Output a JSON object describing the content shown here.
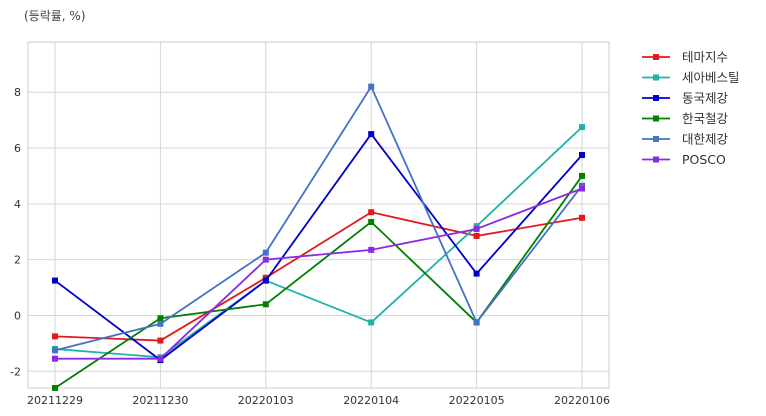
{
  "chart_data": {
    "type": "line",
    "unit_label": "(등락률, %)",
    "categories": [
      "20211229",
      "20211230",
      "20220103",
      "20220104",
      "20220105",
      "20220106"
    ],
    "ylim": [
      -2.6,
      9.8
    ],
    "yticks": [
      -2,
      0,
      2,
      4,
      6,
      8
    ],
    "grid": true,
    "legend_position": "outside-right",
    "series": [
      {
        "name": "테마지수",
        "color": "#e31a1c",
        "values": [
          -0.75,
          -0.9,
          1.35,
          3.7,
          2.85,
          3.5
        ]
      },
      {
        "name": "세아베스틸",
        "color": "#20b2aa",
        "values": [
          -1.2,
          -1.5,
          1.25,
          -0.25,
          3.2,
          6.75
        ]
      },
      {
        "name": "동국제강",
        "color": "#0000cd",
        "values": [
          1.25,
          -1.6,
          1.25,
          6.5,
          1.5,
          5.75
        ]
      },
      {
        "name": "한국철강",
        "color": "#008000",
        "values": [
          -2.6,
          -0.1,
          0.4,
          3.35,
          -0.25,
          5.0
        ]
      },
      {
        "name": "대한제강",
        "color": "#4472c4",
        "values": [
          -1.25,
          -0.3,
          2.25,
          8.2,
          -0.25,
          4.65
        ]
      },
      {
        "name": "POSCO",
        "color": "#8a2be2",
        "values": [
          -1.55,
          -1.55,
          2.0,
          2.35,
          3.1,
          4.55
        ]
      }
    ]
  }
}
